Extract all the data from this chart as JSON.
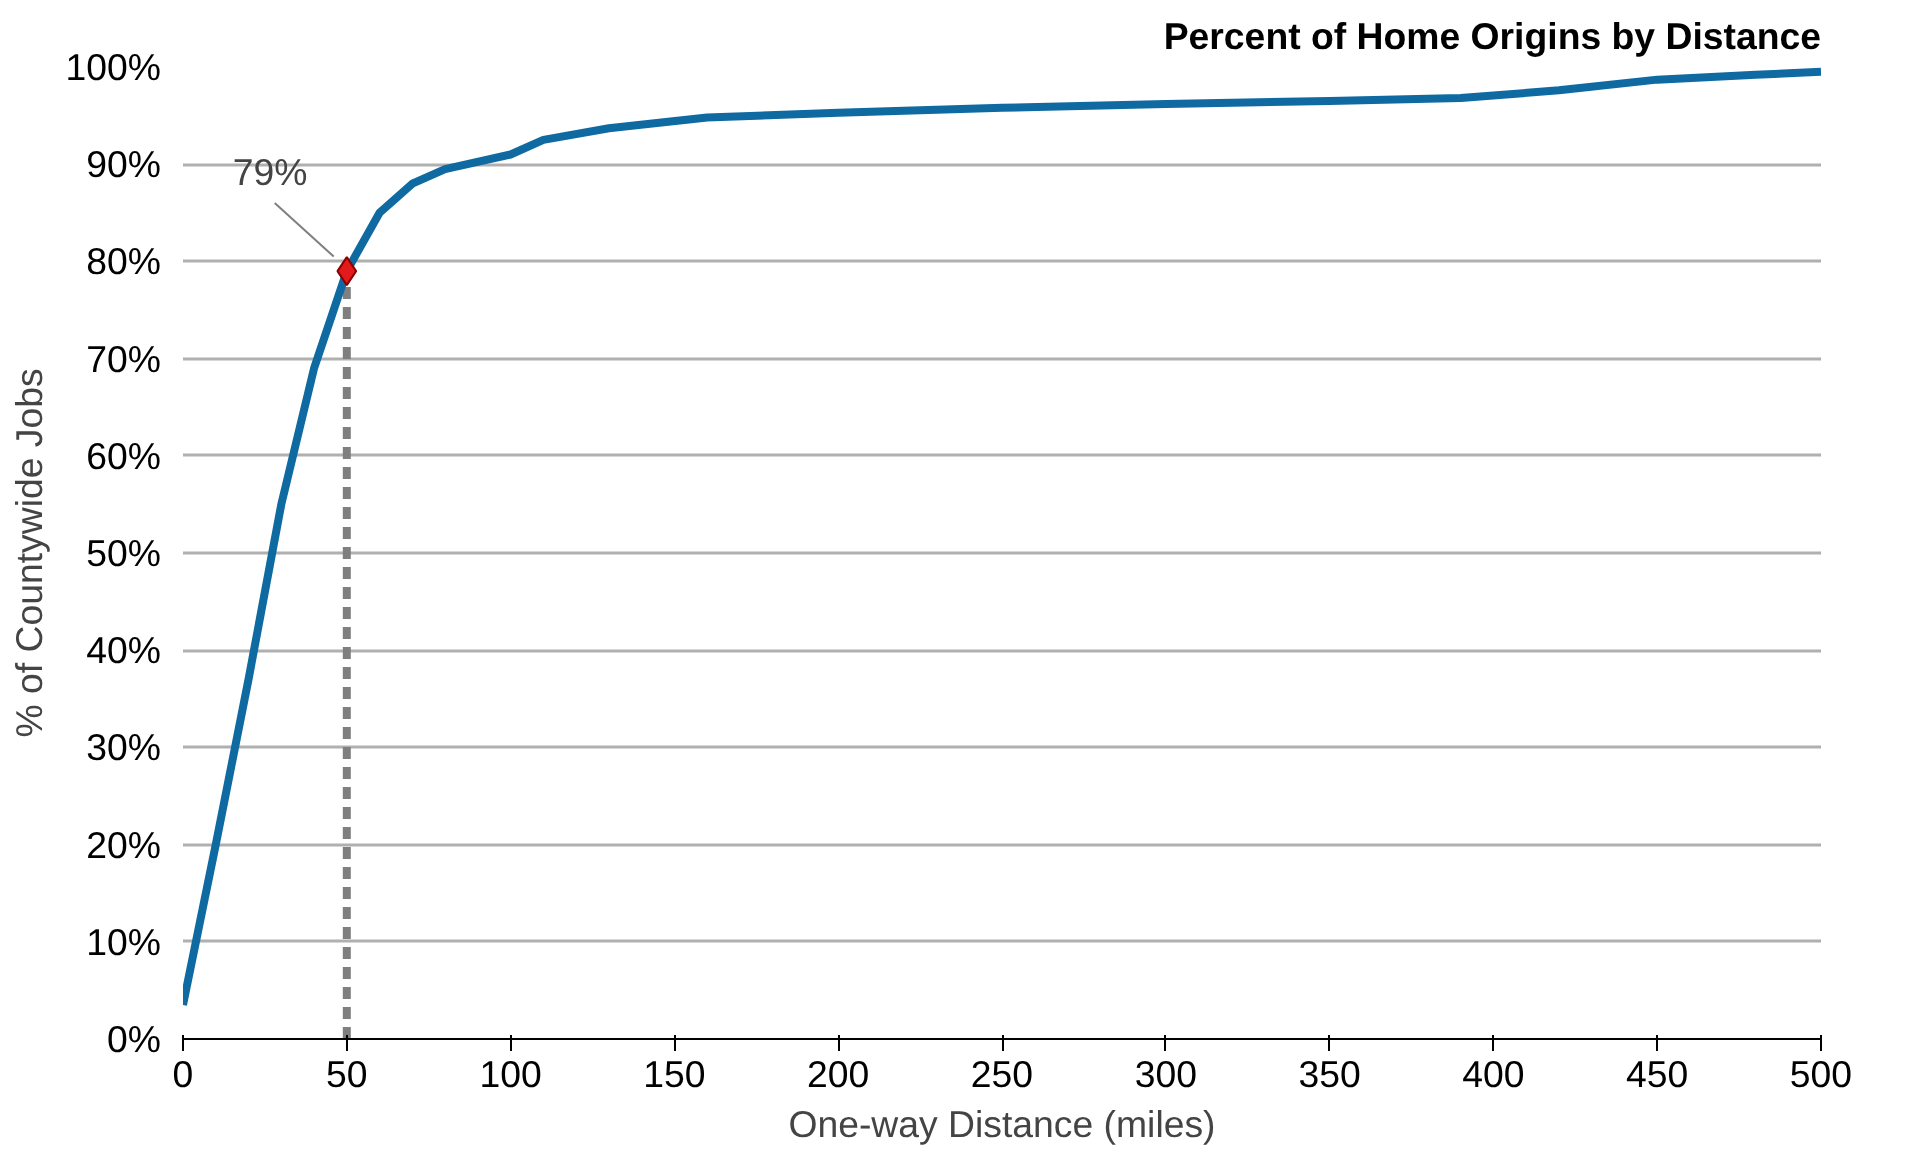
{
  "chart_data": {
    "type": "line",
    "title": "Percent of Home Origins by Distance",
    "xlabel": "One-way Distance (miles)",
    "ylabel": "% of Countywide Jobs",
    "xlim": [
      0,
      500
    ],
    "xticks": [
      0,
      50,
      100,
      150,
      200,
      250,
      300,
      350,
      400,
      450,
      500
    ],
    "ylim": [
      0,
      100
    ],
    "yticks": [
      {
        "value": 0,
        "label": "0%"
      },
      {
        "value": 10,
        "label": "10%"
      },
      {
        "value": 20,
        "label": "20%"
      },
      {
        "value": 30,
        "label": "30%"
      },
      {
        "value": 40,
        "label": "40%"
      },
      {
        "value": 50,
        "label": "50%"
      },
      {
        "value": 60,
        "label": "60%"
      },
      {
        "value": 70,
        "label": "70%"
      },
      {
        "value": 80,
        "label": "80%"
      },
      {
        "value": 90,
        "label": "90%"
      },
      {
        "value": 100,
        "label": "100%"
      }
    ],
    "grid": "y",
    "series": [
      {
        "type": "line",
        "color": "#7f7f7f",
        "line_style": "dashed",
        "x": [
          50,
          50
        ],
        "values": [
          0,
          79
        ]
      },
      {
        "color": "#0e6aa0",
        "line_style": "solid",
        "x": [
          0,
          10,
          20,
          30,
          40,
          50,
          60,
          70,
          80,
          100,
          110,
          130,
          160,
          200,
          250,
          300,
          350,
          390,
          420,
          450,
          480,
          500
        ],
        "values": [
          3.5,
          20,
          37,
          55,
          69,
          79,
          85,
          88,
          89.5,
          91,
          92.5,
          93.7,
          94.8,
          95.3,
          95.8,
          96.2,
          96.5,
          96.8,
          97.6,
          98.7,
          99.2,
          99.5
        ]
      },
      {
        "type": "scatter",
        "color": "#e31a1c",
        "marker": "diamond",
        "x": [
          50
        ],
        "values": [
          79
        ]
      }
    ],
    "annotations": [
      {
        "text": "79%",
        "x": 50,
        "y": 79
      }
    ]
  }
}
